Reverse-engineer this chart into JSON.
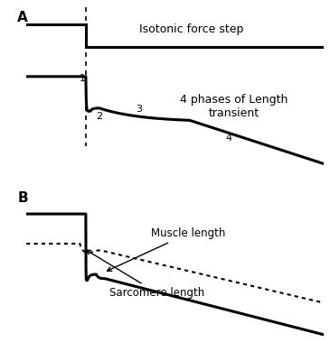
{
  "panel_A_label": "A",
  "panel_B_label": "B",
  "isotonic_label": "Isotonic force step",
  "phases_label": "4 phases of Length\ntransient",
  "phase_labels": [
    "1",
    "2",
    "3",
    "4"
  ],
  "muscle_length_label": "Muscle length",
  "sarcomere_length_label": "Sarcomere length",
  "bg_color": "#ffffff",
  "line_color": "#000000",
  "dpi": 100,
  "figsize": [
    3.65,
    4.0
  ]
}
